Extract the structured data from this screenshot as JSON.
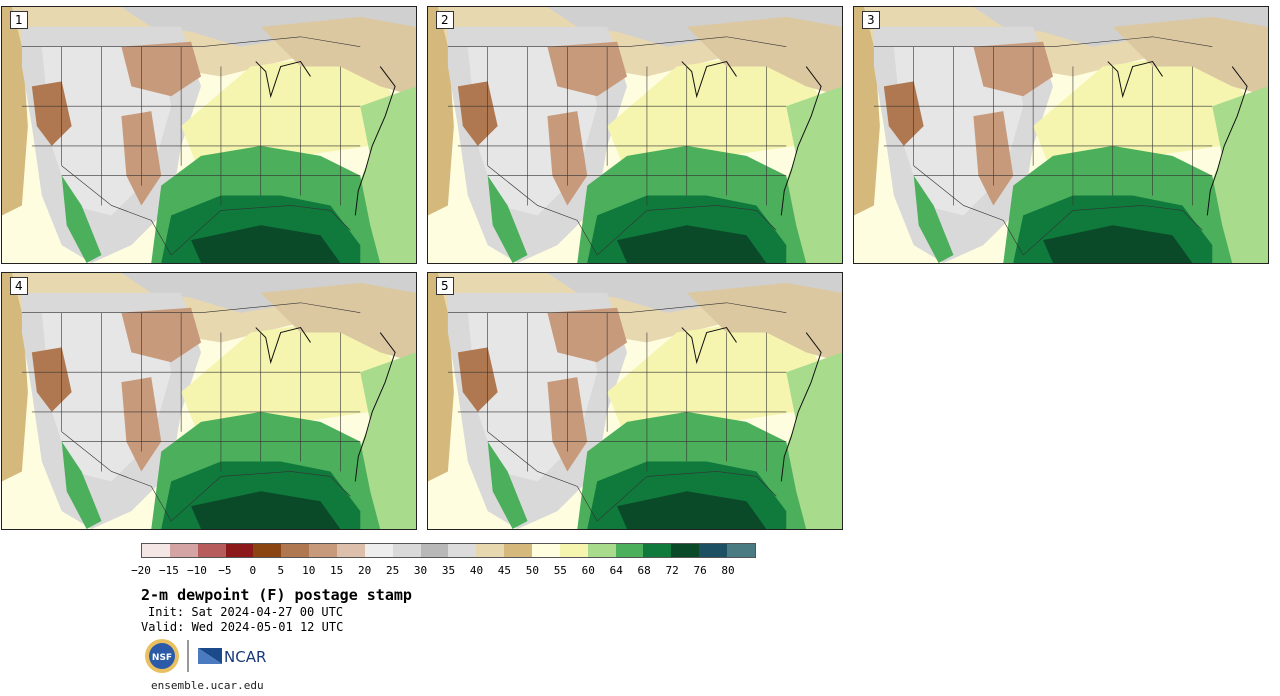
{
  "panels": [
    {
      "label": "1"
    },
    {
      "label": "2"
    },
    {
      "label": "3"
    },
    {
      "label": "4"
    },
    {
      "label": "5"
    }
  ],
  "colorbar": {
    "colors": [
      "#f5e6e6",
      "#d4a3a3",
      "#b65c5c",
      "#8c1a1a",
      "#8b4513",
      "#b07850",
      "#c89a7c",
      "#dcc0ac",
      "#eeeeee",
      "#d9d9d9",
      "#b8b8b8",
      "#dcdcdc",
      "#e8d8b0",
      "#d4b87c",
      "#ffffe0",
      "#f5f5b0",
      "#a8dc8c",
      "#4caf5c",
      "#0f7a3c",
      "#0a4a28",
      "#1e5064",
      "#4a7a82"
    ],
    "ticks": [
      "−20",
      "−15",
      "−10",
      "−5",
      "0",
      "5",
      "10",
      "15",
      "20",
      "25",
      "30",
      "35",
      "40",
      "45",
      "50",
      "55",
      "60",
      "64",
      "68",
      "72",
      "76",
      "80"
    ]
  },
  "title": "2-m dewpoint (F) postage stamp",
  "init": "Init: Sat 2024-04-27 00 UTC",
  "valid": "Valid: Wed 2024-05-01 12 UTC",
  "logos": {
    "nsf": "NSF",
    "ncar": "NCAR"
  },
  "site": "ensemble.ucar.edu"
}
